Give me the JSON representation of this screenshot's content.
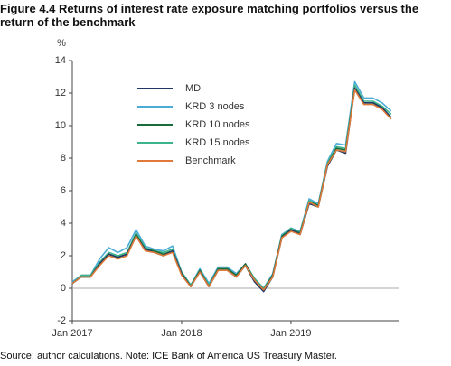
{
  "chart_data": {
    "type": "line",
    "title": "Figure 4.4    Returns of interest rate exposure matching portfolios versus the return of the benchmark",
    "y_label": "%",
    "source": "Source: author calculations. Note: ICE Bank of America US Treasury Master.",
    "categories": [
      "Jan 2017",
      null,
      null,
      null,
      null,
      null,
      null,
      null,
      null,
      null,
      null,
      null,
      "Jan 2018",
      null,
      null,
      null,
      null,
      null,
      null,
      null,
      null,
      null,
      null,
      null,
      "Jan 2019",
      null,
      null,
      null,
      null,
      null,
      null,
      null,
      null,
      null,
      null,
      null
    ],
    "ylim": [
      -2,
      14
    ],
    "yticks": [
      -2,
      0,
      2,
      4,
      6,
      8,
      10,
      12,
      14
    ],
    "grid": false,
    "series": [
      {
        "name": "MD",
        "color": "#1f3864",
        "values": [
          0.3,
          0.7,
          0.7,
          1.5,
          2.1,
          1.9,
          2.1,
          3.2,
          2.4,
          2.2,
          2.0,
          2.3,
          0.9,
          0.1,
          1.0,
          0.1,
          1.1,
          1.1,
          0.7,
          1.4,
          0.4,
          -0.2,
          0.7,
          3.1,
          3.6,
          3.3,
          5.2,
          5.0,
          7.5,
          8.5,
          8.3,
          12.3,
          11.4,
          11.4,
          11.1,
          10.5
        ]
      },
      {
        "name": "KRD 3 nodes",
        "color": "#4bacd6",
        "values": [
          0.4,
          0.8,
          0.8,
          1.8,
          2.5,
          2.2,
          2.5,
          3.6,
          2.6,
          2.4,
          2.3,
          2.6,
          1.0,
          0.2,
          1.2,
          0.3,
          1.3,
          1.3,
          0.9,
          1.5,
          0.6,
          0.0,
          0.9,
          3.3,
          3.7,
          3.5,
          5.5,
          5.2,
          7.8,
          8.9,
          8.8,
          12.7,
          11.7,
          11.7,
          11.4,
          10.9
        ]
      },
      {
        "name": "KRD 10 nodes",
        "color": "#1a6b3a",
        "values": [
          0.3,
          0.7,
          0.7,
          1.5,
          2.1,
          1.9,
          2.1,
          3.3,
          2.4,
          2.3,
          2.1,
          2.3,
          0.9,
          0.1,
          1.1,
          0.1,
          1.2,
          1.2,
          0.8,
          1.5,
          0.5,
          -0.1,
          0.8,
          3.2,
          3.6,
          3.4,
          5.3,
          5.1,
          7.6,
          8.6,
          8.5,
          12.3,
          11.4,
          11.4,
          11.1,
          10.5
        ]
      },
      {
        "name": "KRD 15 nodes",
        "color": "#3cb38a",
        "values": [
          0.3,
          0.8,
          0.8,
          1.6,
          2.2,
          2.0,
          2.2,
          3.4,
          2.5,
          2.3,
          2.2,
          2.4,
          1.0,
          0.2,
          1.1,
          0.2,
          1.2,
          1.2,
          0.8,
          1.5,
          0.6,
          0.0,
          0.8,
          3.2,
          3.7,
          3.4,
          5.4,
          5.1,
          7.7,
          8.7,
          8.6,
          12.5,
          11.5,
          11.5,
          11.2,
          10.7
        ]
      },
      {
        "name": "Benchmark",
        "color": "#e07a3a",
        "values": [
          0.3,
          0.7,
          0.7,
          1.4,
          2.0,
          1.8,
          2.0,
          3.2,
          2.3,
          2.2,
          2.0,
          2.2,
          0.8,
          0.1,
          1.0,
          0.1,
          1.1,
          1.1,
          0.7,
          1.4,
          0.5,
          -0.1,
          0.7,
          3.1,
          3.5,
          3.3,
          5.3,
          5.0,
          7.6,
          8.5,
          8.4,
          12.2,
          11.3,
          11.3,
          11.0,
          10.4
        ]
      }
    ]
  }
}
